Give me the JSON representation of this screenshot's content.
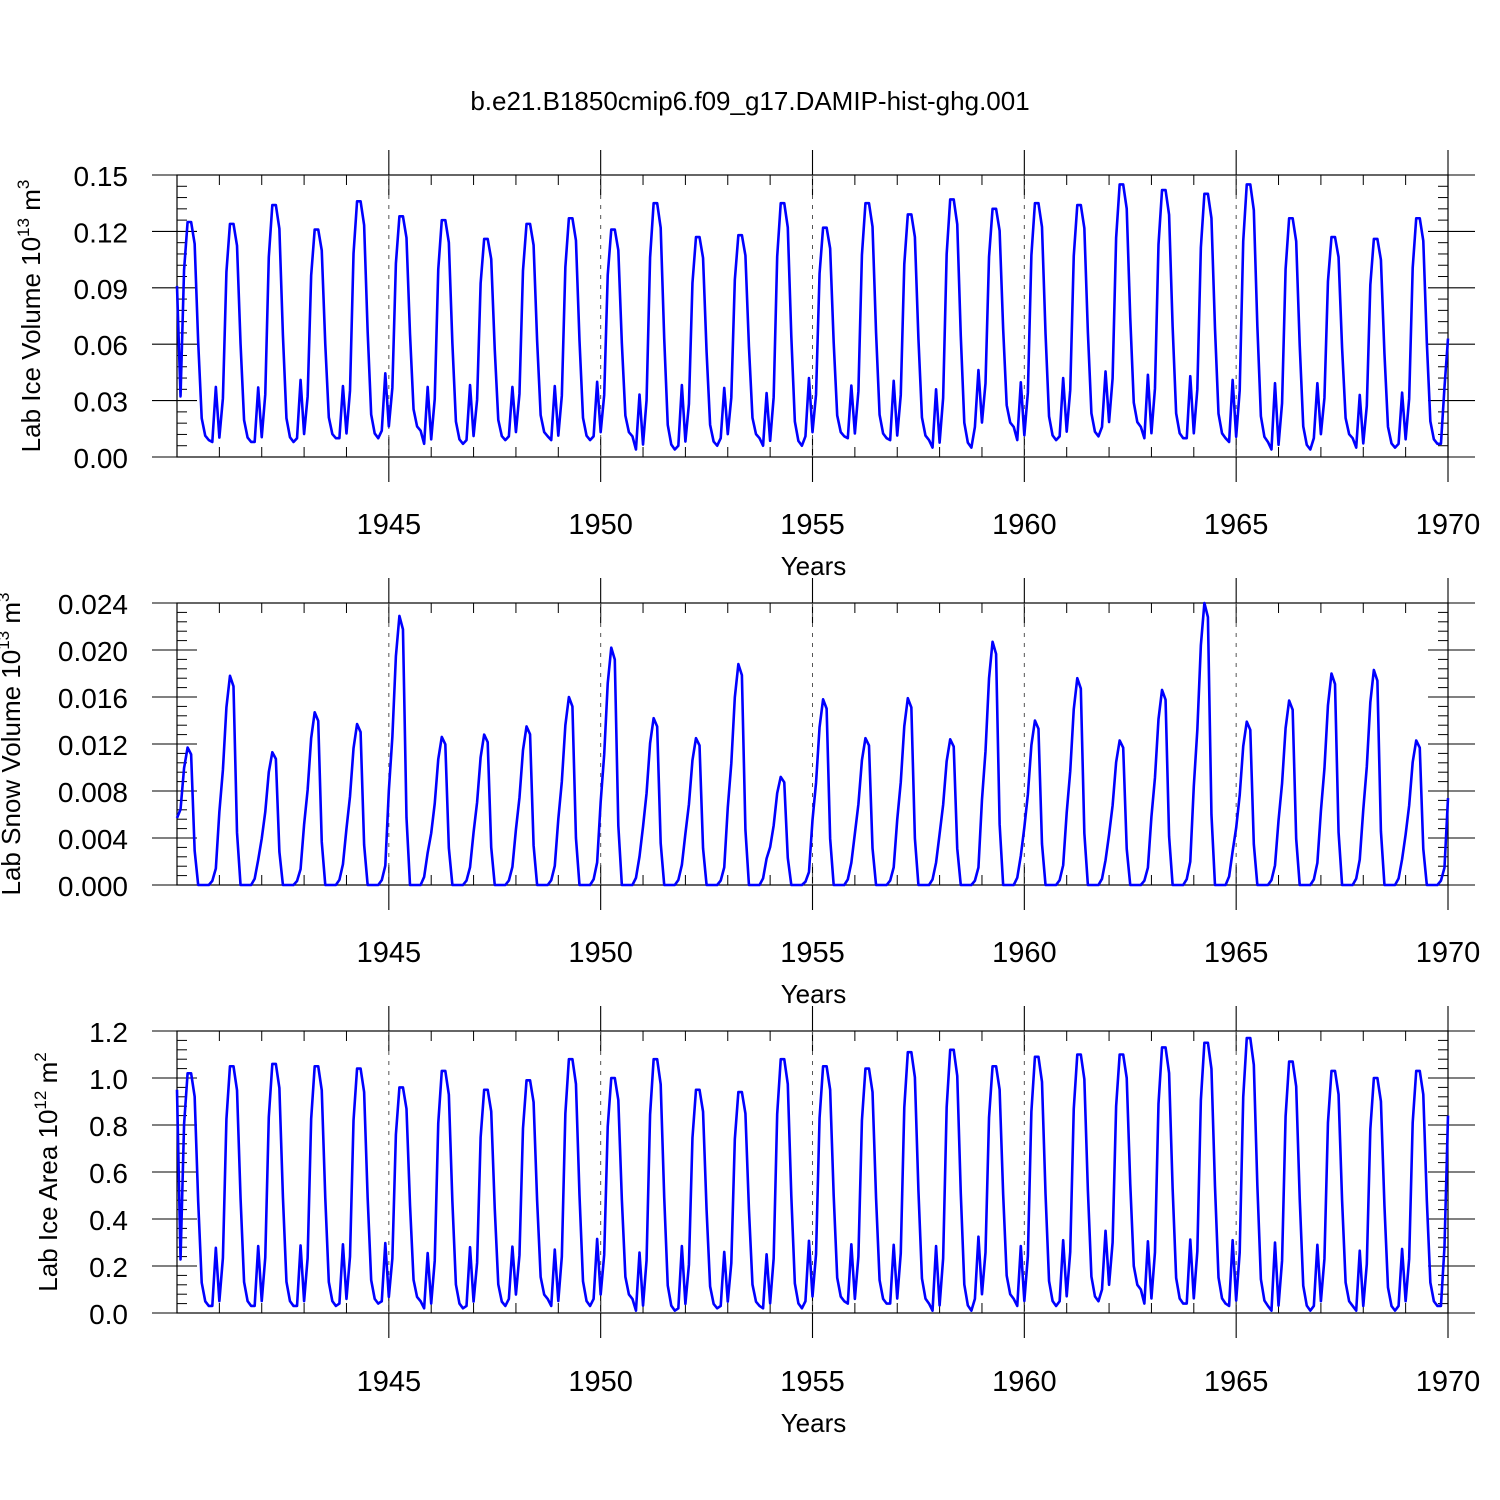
{
  "title": "b.e21.B1850cmip6.f09_g17.DAMIP-hist-ghg.001",
  "colors": {
    "series": "#0000ff",
    "axis": "#000000",
    "reference": "#555555"
  },
  "chart_data": [
    {
      "type": "line",
      "title": "b.e21.B1850cmip6.f09_g17.DAMIP-hist-ghg.001",
      "xlabel": "Years",
      "ylabel": {
        "text": "Lab Ice Volume 10",
        "exp": "13",
        "unit": " m",
        "unit_exp": "3"
      },
      "xlim": [
        1940.0,
        1970.0
      ],
      "ylim": [
        0.0,
        0.15
      ],
      "xticks": [
        "1945",
        "1950",
        "1955",
        "1960",
        "1965",
        "1970"
      ],
      "yticks": [
        "0.00",
        "0.03",
        "0.06",
        "0.09",
        "0.12",
        "0.15"
      ],
      "reference_lines": [
        1945,
        1950,
        1955,
        1960,
        1965
      ],
      "series": [
        {
          "name": "Lab Ice Volume",
          "monthly_start": 1940.0,
          "annual_max": [
            0.125,
            0.124,
            0.134,
            0.121,
            0.136,
            0.128,
            0.126,
            0.116,
            0.124,
            0.127,
            0.121,
            0.135,
            0.117,
            0.118,
            0.135,
            0.122,
            0.135,
            0.129,
            0.137,
            0.132,
            0.135,
            0.134,
            0.145,
            0.142,
            0.14,
            0.145,
            0.127,
            0.117,
            0.116,
            0.127
          ],
          "annual_min": [
            0.009,
            0.008,
            0.008,
            0.01,
            0.01,
            0.014,
            0.007,
            0.009,
            0.011,
            0.009,
            0.011,
            0.004,
            0.006,
            0.01,
            0.006,
            0.011,
            0.01,
            0.009,
            0.005,
            0.016,
            0.009,
            0.011,
            0.016,
            0.01,
            0.01,
            0.008,
            0.004,
            0.01,
            0.005,
            0.007
          ],
          "start": 0.091,
          "end": 0.063
        }
      ]
    },
    {
      "type": "line",
      "xlabel": "Years",
      "ylabel": {
        "text": "Lab Snow Volume 10",
        "exp": "13",
        "unit": " m",
        "unit_exp": "3"
      },
      "xlim": [
        1940.0,
        1970.0
      ],
      "ylim": [
        0.0,
        0.024
      ],
      "xticks": [
        "1945",
        "1950",
        "1955",
        "1960",
        "1965",
        "1970"
      ],
      "yticks": [
        "0.000",
        "0.004",
        "0.008",
        "0.012",
        "0.016",
        "0.020",
        "0.024"
      ],
      "reference_lines": [
        1945,
        1950,
        1955,
        1960,
        1965
      ],
      "series": [
        {
          "name": "Lab Snow Volume",
          "monthly_start": 1940.0,
          "annual_max": [
            0.0117,
            0.0178,
            0.0113,
            0.0147,
            0.0137,
            0.0229,
            0.0126,
            0.0128,
            0.0135,
            0.016,
            0.0202,
            0.0142,
            0.0125,
            0.0188,
            0.0092,
            0.0158,
            0.0125,
            0.0159,
            0.0124,
            0.0207,
            0.014,
            0.0176,
            0.0123,
            0.0166,
            0.024,
            0.0139,
            0.0157,
            0.018,
            0.0183,
            0.0123
          ],
          "annual_min": [
            0.0,
            0.0,
            0.0,
            0.0,
            0.0,
            0.0,
            0.0,
            0.0,
            0.0,
            0.0,
            0.0,
            0.0,
            0.0,
            0.0,
            0.0,
            0.0,
            0.0,
            0.0,
            0.0,
            0.0,
            0.0,
            0.0,
            0.0,
            0.0,
            0.0,
            0.0,
            0.0,
            0.0,
            0.0,
            0.0
          ],
          "start": 0.0057,
          "end": 0.0074
        }
      ]
    },
    {
      "type": "line",
      "xlabel": "Years",
      "ylabel": {
        "text": "Lab Ice Area 10",
        "exp": "12",
        "unit": " m",
        "unit_exp": "2"
      },
      "xlim": [
        1940.0,
        1970.0
      ],
      "ylim": [
        0.0,
        1.2
      ],
      "xticks": [
        "1945",
        "1950",
        "1955",
        "1960",
        "1965",
        "1970"
      ],
      "yticks": [
        "0.0",
        "0.2",
        "0.4",
        "0.6",
        "0.8",
        "1.0",
        "1.2"
      ],
      "reference_lines": [
        1945,
        1950,
        1955,
        1960,
        1965
      ],
      "series": [
        {
          "name": "Lab Ice Area",
          "monthly_start": 1940.0,
          "annual_max": [
            1.02,
            1.05,
            1.06,
            1.05,
            1.04,
            0.96,
            1.03,
            0.95,
            0.99,
            1.08,
            1.0,
            1.08,
            0.95,
            0.94,
            1.08,
            1.05,
            1.04,
            1.11,
            1.12,
            1.05,
            1.09,
            1.1,
            1.1,
            1.13,
            1.15,
            1.17,
            1.07,
            1.03,
            1.0,
            1.03
          ],
          "annual_min": [
            0.03,
            0.03,
            0.03,
            0.03,
            0.04,
            0.05,
            0.02,
            0.03,
            0.06,
            0.03,
            0.06,
            0.01,
            0.02,
            0.03,
            0.02,
            0.05,
            0.04,
            0.04,
            0.01,
            0.06,
            0.03,
            0.05,
            0.1,
            0.04,
            0.04,
            0.03,
            0.01,
            0.03,
            0.01,
            0.03
          ],
          "start": 0.95,
          "end": 0.84
        }
      ]
    }
  ]
}
